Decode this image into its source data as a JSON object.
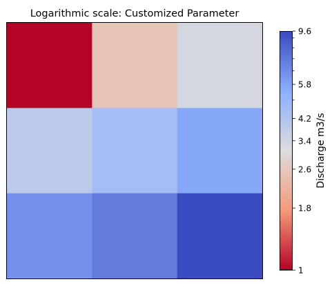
{
  "chart_data": {
    "type": "heatmap",
    "title": "Logarithmic scale: Customized Parameter",
    "xlabel": "",
    "ylabel": "",
    "rows": 3,
    "cols": 3,
    "values": [
      [
        1.0,
        2.5,
        3.3
      ],
      [
        3.9,
        4.6,
        5.7
      ],
      [
        6.5,
        7.3,
        9.6
      ]
    ],
    "colormap": "coolwarm_r",
    "scale": "log",
    "colorbar": {
      "label": "Discharge m3/s",
      "range": [
        1,
        9.6
      ],
      "tick_labels": [
        "1",
        "1.8",
        "2.6",
        "3.4",
        "4.2",
        "5.8",
        "9.6"
      ],
      "ticks": [
        1,
        1.8,
        2.6,
        3.4,
        4.2,
        5.8,
        9.6
      ],
      "minor_ticks": [
        5,
        6.6,
        7.4,
        8.2,
        9
      ]
    },
    "colors": {
      "low": "#b40426",
      "mid": "#dddcdc",
      "high": "#3b4cc0"
    }
  }
}
